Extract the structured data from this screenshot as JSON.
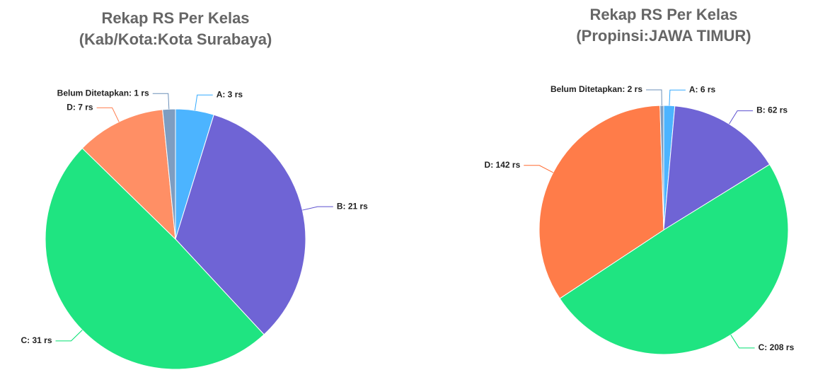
{
  "chart_data": [
    {
      "type": "pie",
      "title": "Rekap RS Per Kelas",
      "subtitle": "(Kab/Kota:Kota Surabaya)",
      "values": [
        3,
        21,
        31,
        7,
        1
      ],
      "value_labels": [
        "A: 3 rs",
        "B: 21 rs",
        "C: 31 rs",
        "D: 7 rs",
        "Belum Ditetapkan: 1 rs"
      ],
      "colors": [
        "#33aaff",
        "#5b4fcf",
        "#00e070",
        "#ff7f50",
        "#6b8fb8"
      ]
    },
    {
      "type": "pie",
      "title": "Rekap RS Per Kelas",
      "subtitle": "(Propinsi:JAWA TIMUR)",
      "values": [
        6,
        62,
        208,
        142,
        2
      ],
      "value_labels": [
        "A: 6 rs",
        "B: 62 rs",
        "C: 208 rs",
        "D: 142 rs",
        "Belum Ditetapkan: 2 rs"
      ],
      "colors": [
        "#33aaff",
        "#5b4fcf",
        "#00e070",
        "#ff6a30",
        "#6b8fb8"
      ]
    }
  ]
}
